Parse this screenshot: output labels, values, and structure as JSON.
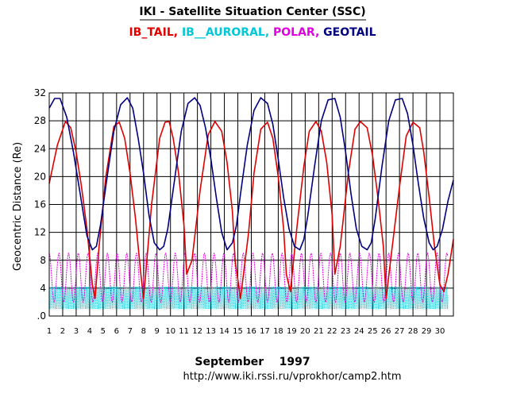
{
  "chart_data": {
    "type": "line",
    "title": "IKI - Satellite Situation Center (SSC)",
    "ylabel": "Geocentric Distance (Re)",
    "xlabel": "September    1997",
    "footer_url": "http://www.iki.rssi.ru/vprokhor/camp2.htm",
    "x_ticks": [
      "1",
      "2",
      "3",
      "4",
      "5",
      "6",
      "7",
      "8",
      "9",
      "10",
      "11",
      "12",
      "13",
      "14",
      "15",
      "16",
      "17",
      "18",
      "19",
      "20",
      "21",
      "22",
      "23",
      "24",
      "25",
      "26",
      "27",
      "28",
      "29",
      "30"
    ],
    "y_ticks": [
      ".0",
      "4",
      "8",
      "12",
      "16",
      "20",
      "24",
      "28",
      "32"
    ],
    "xlim": [
      1,
      31
    ],
    "ylim": [
      0,
      32
    ],
    "grid": true,
    "legend_position": "top",
    "series": [
      {
        "name": "IB_TAIL,",
        "color": "#e00000",
        "x": [
          1.0,
          1.6,
          2.2,
          2.6,
          3.0,
          3.4,
          3.8,
          4.2,
          4.4,
          4.7,
          5.2,
          5.8,
          6.2,
          6.6,
          7.0,
          7.4,
          7.8,
          8.0,
          8.2,
          8.6,
          9.2,
          9.6,
          9.9,
          10.2,
          10.6,
          11.0,
          11.2,
          11.6,
          12.2,
          12.8,
          13.3,
          13.8,
          14.2,
          14.6,
          14.8,
          15.2,
          15.8,
          16.2,
          16.7,
          17.2,
          17.6,
          18.0,
          18.4,
          18.6,
          18.9,
          19.4,
          19.9,
          20.3,
          20.8,
          21.2,
          21.6,
          22.0,
          22.2,
          22.6,
          23.2,
          23.7,
          24.1,
          24.6,
          25.0,
          25.4,
          25.8,
          26.0,
          26.4,
          27.0,
          27.5,
          28.0,
          28.5,
          28.8,
          29.2,
          29.6,
          30.0,
          30.3,
          30.6,
          31.0
        ],
        "values": [
          19,
          24.5,
          27.9,
          27.0,
          23.5,
          18.5,
          12.5,
          4.5,
          2.5,
          10,
          20,
          27.2,
          27.8,
          25.5,
          20.5,
          14,
          6,
          2.5,
          7,
          16,
          25.5,
          27.8,
          27.9,
          25.5,
          20.5,
          13,
          6,
          8,
          18,
          26,
          27.9,
          26.5,
          22,
          15,
          8,
          2.5,
          12,
          20.5,
          26.8,
          27.8,
          25.5,
          20,
          12.5,
          6,
          3.5,
          13,
          21.5,
          26.5,
          27.9,
          26.5,
          22,
          14.5,
          6,
          10,
          20.5,
          26.8,
          27.9,
          27.0,
          23,
          17,
          10,
          2.5,
          9,
          18.5,
          25.8,
          27.8,
          27.0,
          23.5,
          17,
          10,
          4.5,
          3.5,
          6,
          11
        ]
      },
      {
        "name": "IB__AURORAL,",
        "color": "#00c8d8",
        "band_low": 1.0,
        "band_high": 4.2,
        "period_days": 0.125,
        "values": []
      },
      {
        "name": "POLAR,",
        "color": "#e000e0",
        "band_low": 2.0,
        "band_high": 9.0,
        "period_days": 0.72,
        "values": []
      },
      {
        "name": "GEOTAIL",
        "color": "#000080",
        "x": [
          1.0,
          1.4,
          1.8,
          2.3,
          2.8,
          3.3,
          3.8,
          4.2,
          4.5,
          4.8,
          5.3,
          5.8,
          6.3,
          6.8,
          7.2,
          7.6,
          8.0,
          8.4,
          8.8,
          9.2,
          9.5,
          9.8,
          10.3,
          10.8,
          11.3,
          11.8,
          12.2,
          12.6,
          13.0,
          13.4,
          13.8,
          14.2,
          14.6,
          14.9,
          15.2,
          15.7,
          16.2,
          16.7,
          17.2,
          17.6,
          18.0,
          18.4,
          18.8,
          19.2,
          19.6,
          19.9,
          20.2,
          20.7,
          21.2,
          21.7,
          22.2,
          22.6,
          23.0,
          23.4,
          23.8,
          24.2,
          24.6,
          24.9,
          25.2,
          25.7,
          26.2,
          26.7,
          27.2,
          27.6,
          28.0,
          28.4,
          28.8,
          29.2,
          29.5,
          29.8,
          30.2,
          30.6,
          31.0
        ],
        "values": [
          29.8,
          31.2,
          31.2,
          28.5,
          23.5,
          17.5,
          11.5,
          9.5,
          10.0,
          13.0,
          20.0,
          26.5,
          30.3,
          31.3,
          29.8,
          25.5,
          20.5,
          14.5,
          10.5,
          9.5,
          10.0,
          12.5,
          19.5,
          26.5,
          30.5,
          31.3,
          30.2,
          27.0,
          22.5,
          17.0,
          12.0,
          9.5,
          10.5,
          13.0,
          17.5,
          24.5,
          29.5,
          31.3,
          30.5,
          27.5,
          22.5,
          17.0,
          12.5,
          10.0,
          9.5,
          11.0,
          14.5,
          21.5,
          28.0,
          31.0,
          31.2,
          28.5,
          23.5,
          17.5,
          12.5,
          10.0,
          9.5,
          10.5,
          14.0,
          21.5,
          28.0,
          31.0,
          31.2,
          29.0,
          24.5,
          19.0,
          14.0,
          10.5,
          9.5,
          10.0,
          12.5,
          16.5,
          19.5
        ]
      }
    ]
  }
}
